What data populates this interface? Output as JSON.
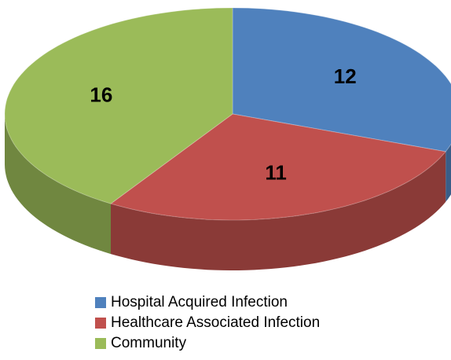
{
  "chart_data": {
    "type": "pie",
    "categories": [
      "Hospital Acquired Infection",
      "Healthcare Associated Infection",
      "Community"
    ],
    "values": [
      12,
      11,
      16
    ],
    "colors": [
      "#4f81bd",
      "#c0504d",
      "#9bbb59"
    ],
    "legend": "bottom"
  }
}
